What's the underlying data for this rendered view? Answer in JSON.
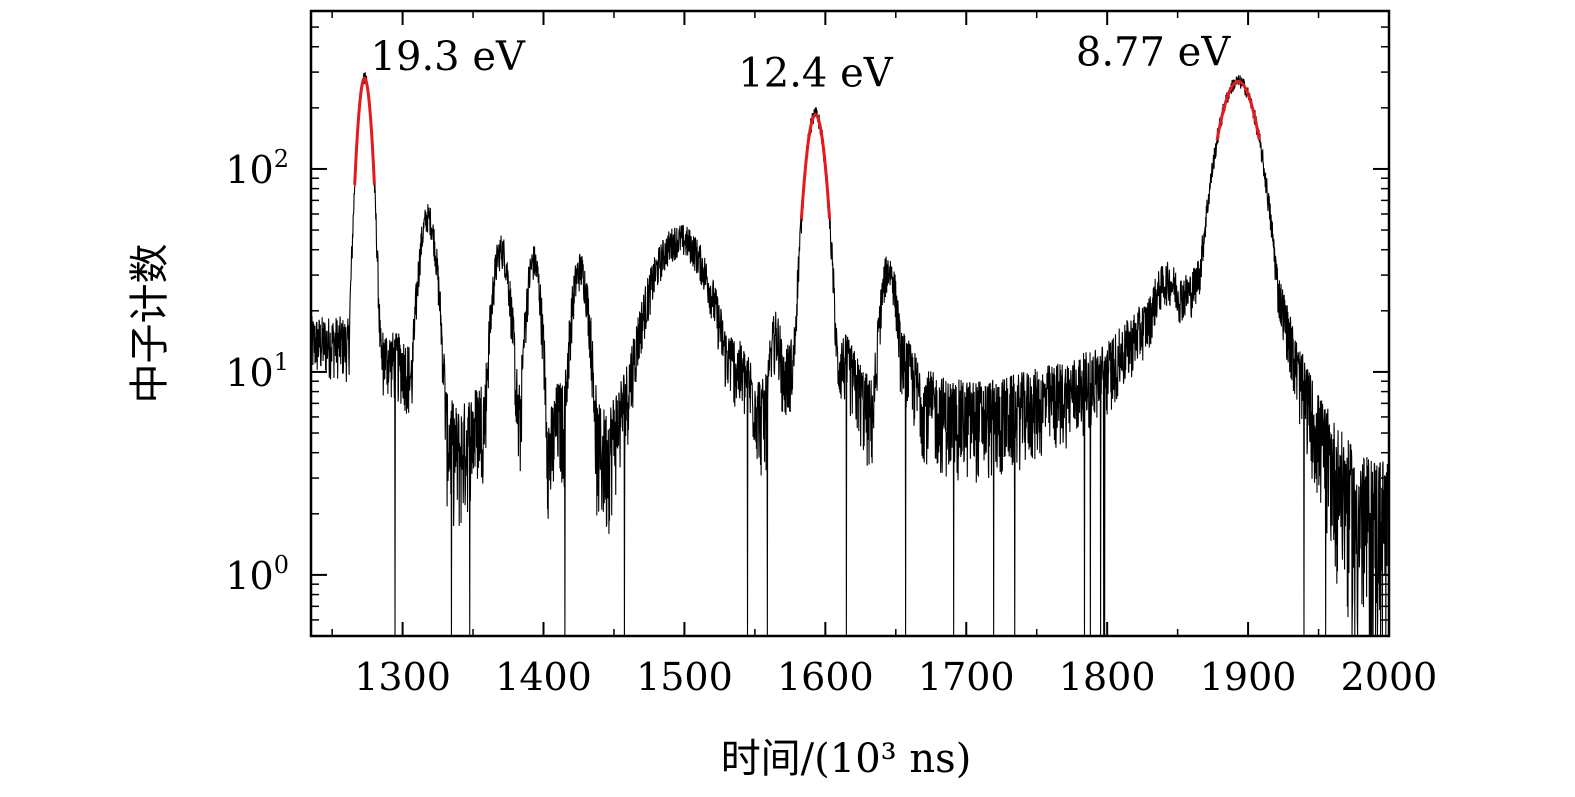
{
  "chart_data": {
    "type": "line",
    "title": "",
    "xlabel": "时间/(10³ ns)",
    "ylabel": "中子计数",
    "x_range": [
      1235,
      2000
    ],
    "y_range": [
      0.5,
      600
    ],
    "y_scale": "log",
    "grid": false,
    "legend": "none",
    "x_ticks": [
      "1300",
      "1400",
      "1500",
      "1600",
      "1700",
      "1800",
      "1900",
      "2000"
    ],
    "y_ticks": [
      {
        "base": "10",
        "exp": "0"
      },
      {
        "base": "10",
        "exp": "1"
      },
      {
        "base": "10",
        "exp": "2"
      }
    ],
    "annotations": [
      {
        "text": "19.3 eV",
        "x": 1273,
        "y": 280
      },
      {
        "text": "12.4 eV",
        "x": 1593,
        "y": 185
      },
      {
        "text": "8.77 eV",
        "x": 1893,
        "y": 270
      }
    ],
    "peaks": [
      {
        "x": 1273,
        "y": 280,
        "width": 4.5
      },
      {
        "x": 1318,
        "y": 58,
        "width": 6
      },
      {
        "x": 1370,
        "y": 40,
        "width": 6
      },
      {
        "x": 1393,
        "y": 35,
        "width": 5
      },
      {
        "x": 1426,
        "y": 32,
        "width": 6
      },
      {
        "x": 1497,
        "y": 45,
        "width": 20
      },
      {
        "x": 1565,
        "y": 15,
        "width": 5
      },
      {
        "x": 1593,
        "y": 185,
        "width": 6.5
      },
      {
        "x": 1645,
        "y": 32,
        "width": 6
      },
      {
        "x": 1843,
        "y": 28,
        "width": 14
      },
      {
        "x": 1893,
        "y": 270,
        "width": 13
      }
    ],
    "baseline": [
      [
        1235,
        14
      ],
      [
        1255,
        14
      ],
      [
        1285,
        12
      ],
      [
        1300,
        11
      ],
      [
        1340,
        4
      ],
      [
        1355,
        6
      ],
      [
        1380,
        6
      ],
      [
        1405,
        4
      ],
      [
        1410,
        6
      ],
      [
        1445,
        4
      ],
      [
        1460,
        8
      ],
      [
        1475,
        14
      ],
      [
        1520,
        15
      ],
      [
        1545,
        9
      ],
      [
        1555,
        6
      ],
      [
        1570,
        9
      ],
      [
        1580,
        12
      ],
      [
        1615,
        11
      ],
      [
        1632,
        6
      ],
      [
        1650,
        14
      ],
      [
        1670,
        7
      ],
      [
        1690,
        6
      ],
      [
        1720,
        6
      ],
      [
        1750,
        7
      ],
      [
        1775,
        8
      ],
      [
        1800,
        10
      ],
      [
        1820,
        15
      ],
      [
        1840,
        22
      ],
      [
        1860,
        25
      ],
      [
        1880,
        55
      ],
      [
        1910,
        50
      ],
      [
        1925,
        20
      ],
      [
        1935,
        10
      ],
      [
        1950,
        5
      ],
      [
        1965,
        3
      ],
      [
        1980,
        2
      ],
      [
        2000,
        2
      ]
    ],
    "series": [
      {
        "name": "",
        "color": "#000000"
      },
      {
        "name": "",
        "color": "#e41a1c"
      }
    ],
    "fit_peaks": [
      {
        "x": 1273,
        "y": 280,
        "width": 4.5,
        "half_span": 7
      },
      {
        "x": 1593,
        "y": 185,
        "width": 6.5,
        "half_span": 10
      },
      {
        "x": 1893,
        "y": 270,
        "width": 13,
        "half_span": 15
      }
    ]
  }
}
